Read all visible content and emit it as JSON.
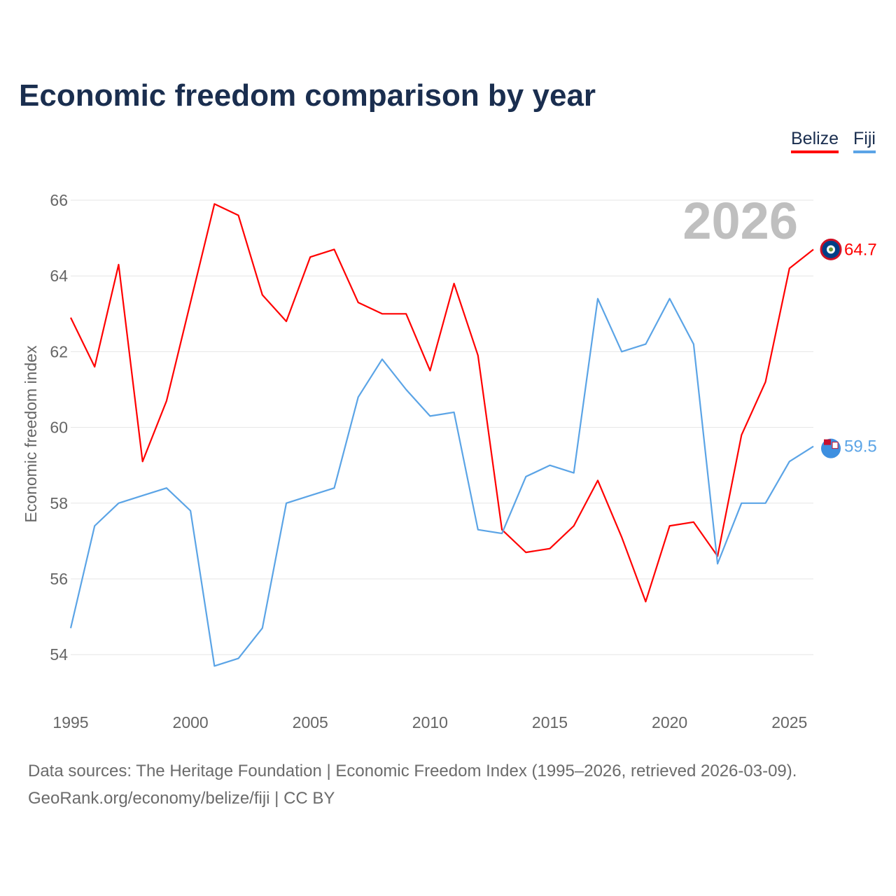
{
  "chart_data": {
    "type": "line",
    "title": "Economic freedom comparison by year",
    "xlabel": "",
    "ylabel": "Economic freedom index",
    "xlim": [
      1995,
      2026
    ],
    "ylim": [
      52.8,
      66.8
    ],
    "yticks": [
      54,
      56,
      58,
      60,
      62,
      64,
      66
    ],
    "xticks": [
      1995,
      2000,
      2005,
      2010,
      2015,
      2020,
      2025
    ],
    "grid": true,
    "legend_position": "top-right",
    "year_label": "2026",
    "x": [
      1995,
      1996,
      1997,
      1998,
      1999,
      2000,
      2001,
      2002,
      2003,
      2004,
      2005,
      2006,
      2007,
      2008,
      2009,
      2010,
      2011,
      2012,
      2013,
      2014,
      2015,
      2016,
      2017,
      2018,
      2019,
      2020,
      2021,
      2022,
      2023,
      2024,
      2025,
      2026
    ],
    "series": [
      {
        "name": "Belize",
        "color": "#ff0000",
        "end_label": "64.7",
        "values": [
          62.9,
          61.6,
          64.3,
          59.1,
          60.7,
          63.3,
          65.9,
          65.6,
          63.5,
          62.8,
          64.5,
          64.7,
          63.3,
          63.0,
          63.0,
          61.5,
          63.8,
          61.9,
          57.3,
          56.7,
          56.8,
          57.4,
          58.6,
          57.1,
          55.4,
          57.4,
          57.5,
          56.6,
          59.8,
          61.2,
          64.2,
          64.7
        ]
      },
      {
        "name": "Fiji",
        "color": "#5ba4e6",
        "end_label": "59.5",
        "values": [
          54.7,
          57.4,
          58.0,
          58.2,
          58.4,
          57.8,
          53.7,
          53.9,
          54.7,
          58.0,
          58.2,
          58.4,
          60.8,
          61.8,
          61.0,
          60.3,
          60.4,
          57.3,
          57.2,
          58.7,
          59.0,
          58.8,
          63.4,
          62.0,
          62.2,
          63.4,
          62.2,
          56.4,
          58.0,
          58.0,
          59.1,
          59.5
        ]
      }
    ]
  },
  "footer": {
    "line1": "Data sources: The Heritage Foundation | Economic Freedom Index (1995–2026, retrieved 2026-03-09).",
    "line2": "GeoRank.org/economy/belize/fiji | CC BY"
  }
}
